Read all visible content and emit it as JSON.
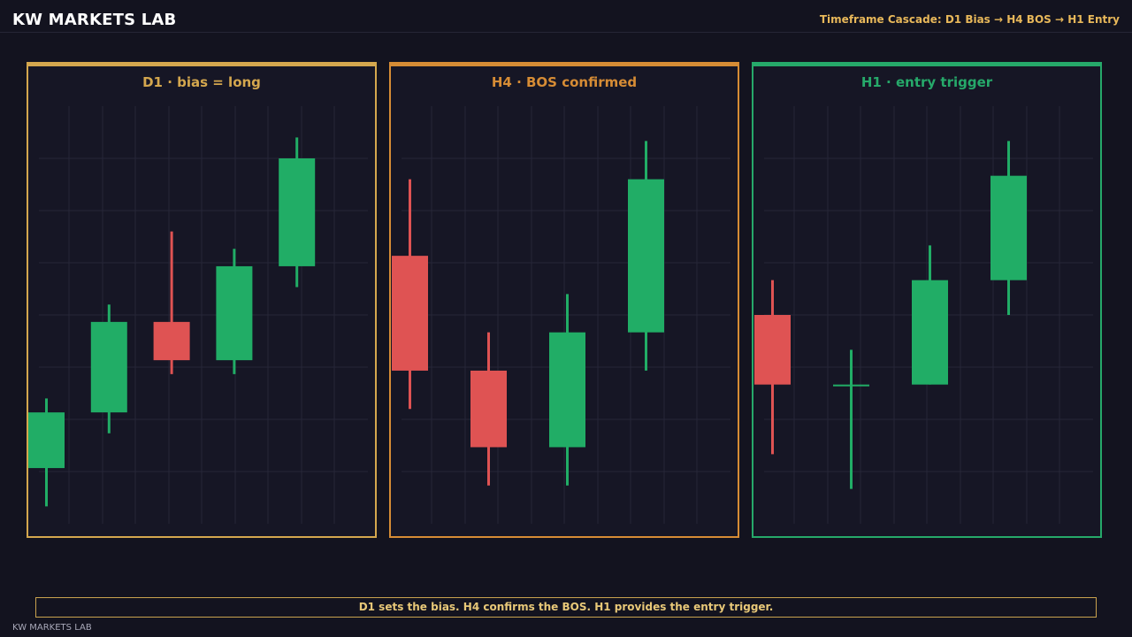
{
  "header": {
    "brand": "KW MARKETS LAB",
    "cascade": "Timeframe Cascade: D1 Bias → H4 BOS → H1 Entry"
  },
  "footer": {
    "caption": "D1 sets the bias. H4 confirms the BOS. H1 provides the entry trigger.",
    "brand": "KW MARKETS LAB"
  },
  "colors": {
    "bull": "#21ad66",
    "bear": "#df5353",
    "grid": "#262638",
    "d1_accent": "#d4a74e",
    "h4_accent": "#d68c35",
    "h1_accent": "#26a96a"
  },
  "chart_data": [
    {
      "type": "candlestick",
      "title": "D1 · bias = long",
      "timeframe": "D1",
      "accent": "#d4a74e",
      "ylim": [
        0,
        120
      ],
      "candles": [
        {
          "open": 16,
          "high": 36,
          "low": 5,
          "close": 32
        },
        {
          "open": 32,
          "high": 63,
          "low": 26,
          "close": 58
        },
        {
          "open": 58,
          "high": 84,
          "low": 43,
          "close": 47
        },
        {
          "open": 47,
          "high": 79,
          "low": 43,
          "close": 74
        },
        {
          "open": 74,
          "high": 111,
          "low": 68,
          "close": 105
        }
      ]
    },
    {
      "type": "candlestick",
      "title": "H4 · BOS confirmed",
      "timeframe": "H4",
      "accent": "#d68c35",
      "ylim": [
        0,
        120
      ],
      "candles": [
        {
          "open": 77,
          "high": 99,
          "low": 33,
          "close": 44
        },
        {
          "open": 44,
          "high": 55,
          "low": 11,
          "close": 22
        },
        {
          "open": 22,
          "high": 66,
          "low": 11,
          "close": 55
        },
        {
          "open": 55,
          "high": 110,
          "low": 44,
          "close": 99
        }
      ]
    },
    {
      "type": "candlestick",
      "title": "H1 · entry trigger",
      "timeframe": "H1",
      "accent": "#26a96a",
      "ylim": [
        0,
        120
      ],
      "candles": [
        {
          "open": 60,
          "high": 70,
          "low": 20,
          "close": 40
        },
        {
          "open": 40,
          "high": 50,
          "low": 10,
          "close": 40
        },
        {
          "open": 40,
          "high": 80,
          "low": 40,
          "close": 70
        },
        {
          "open": 70,
          "high": 110,
          "low": 60,
          "close": 100
        }
      ]
    }
  ]
}
